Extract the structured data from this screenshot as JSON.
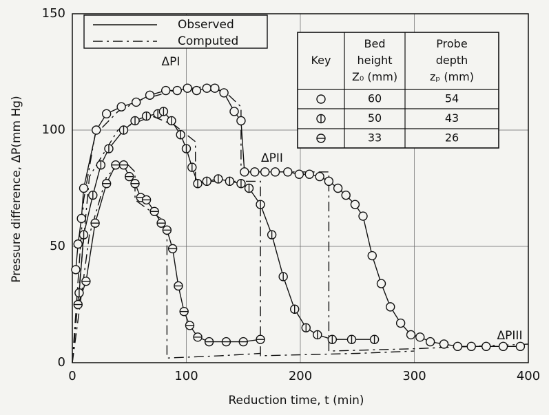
{
  "chart_data": {
    "type": "line",
    "xlabel": "Reduction time,    t (min)",
    "ylabel": "Pressure difference, ΔP(mm Hg)",
    "xlim": [
      0,
      400
    ],
    "xticks": [
      0,
      100,
      200,
      300,
      400
    ],
    "ylim": [
      0,
      150
    ],
    "yticks": [
      0,
      50,
      100,
      150
    ],
    "grid": true,
    "legend": [
      {
        "label": "Observed",
        "line_style": "solid"
      },
      {
        "label": "Computed",
        "line_style": "dash-dot"
      }
    ],
    "annotations": [
      "ΔPI",
      "ΔPII",
      "ΔPIII"
    ],
    "series": [
      {
        "kind": "observed",
        "marker": "circle",
        "color": "#111111",
        "x": [
          3,
          5,
          8,
          10,
          21,
          30,
          43,
          56,
          68,
          82,
          92,
          101,
          109,
          118,
          125,
          133,
          142,
          148,
          151,
          160,
          169,
          178,
          189,
          199,
          208,
          217,
          225,
          233,
          240,
          248,
          255,
          263,
          271,
          279,
          288,
          297,
          305,
          314,
          326,
          338,
          350,
          363,
          378,
          393
        ],
        "y": [
          40,
          51,
          62,
          75,
          100,
          107,
          110,
          112,
          115,
          117,
          117,
          118,
          117,
          118,
          118,
          116,
          108,
          104,
          82,
          82,
          82,
          82,
          82,
          81,
          81,
          80,
          78,
          75,
          72,
          68,
          63,
          46,
          34,
          24,
          17,
          12,
          11,
          9,
          8,
          7,
          7,
          7,
          7,
          7
        ]
      },
      {
        "kind": "observed",
        "marker": "circle-vline",
        "color": "#111111",
        "x": [
          6,
          10,
          18,
          25,
          32,
          45,
          55,
          65,
          75,
          80,
          87,
          95,
          100,
          105,
          110,
          118,
          128,
          138,
          148,
          155,
          165,
          175,
          185,
          195,
          205,
          215,
          228,
          245,
          265
        ],
        "y": [
          30,
          55,
          72,
          85,
          92,
          100,
          104,
          106,
          107,
          108,
          104,
          98,
          92,
          84,
          77,
          78,
          79,
          78,
          77,
          75,
          68,
          55,
          37,
          23,
          15,
          12,
          10,
          10,
          10
        ]
      },
      {
        "kind": "observed",
        "marker": "circle-hline",
        "color": "#111111",
        "x": [
          5,
          12,
          20,
          30,
          38,
          45,
          50,
          55,
          60,
          65,
          72,
          78,
          83,
          88,
          93,
          98,
          103,
          110,
          120,
          135,
          150,
          165
        ],
        "y": [
          25,
          35,
          60,
          77,
          85,
          85,
          80,
          77,
          71,
          70,
          65,
          60,
          57,
          49,
          33,
          22,
          16,
          11,
          9,
          9,
          9,
          10
        ]
      },
      {
        "kind": "computed",
        "line_style": "dash-dot",
        "color": "#111111",
        "x": [
          0,
          10,
          20,
          40,
          60,
          90,
          120,
          135,
          148,
          148,
          225,
          225,
          300,
          400
        ],
        "y": [
          0,
          70,
          98,
          108,
          113,
          117,
          119,
          116,
          110,
          82,
          82,
          5,
          6,
          8
        ]
      },
      {
        "kind": "computed",
        "line_style": "dash-dot",
        "color": "#111111",
        "x": [
          0,
          15,
          40,
          70,
          90,
          108,
          108,
          165,
          165,
          250,
          300
        ],
        "y": [
          0,
          80,
          100,
          106,
          102,
          95,
          78,
          78,
          3,
          4,
          5
        ]
      },
      {
        "kind": "computed",
        "line_style": "dash-dot",
        "color": "#111111",
        "x": [
          0,
          15,
          30,
          45,
          55,
          55,
          83,
          83,
          130,
          165
        ],
        "y": [
          0,
          55,
          80,
          87,
          82,
          70,
          60,
          2,
          3,
          4
        ]
      }
    ],
    "key_table": {
      "headers": [
        "Key",
        "Bed height Z₀ (mm)",
        "Probe depth zₚ (mm)"
      ],
      "rows": [
        {
          "series": 0,
          "bed_height": 60,
          "probe_depth": 54
        },
        {
          "series": 1,
          "bed_height": 50,
          "probe_depth": 43
        },
        {
          "series": 2,
          "bed_height": 33,
          "probe_depth": 26
        }
      ]
    }
  }
}
